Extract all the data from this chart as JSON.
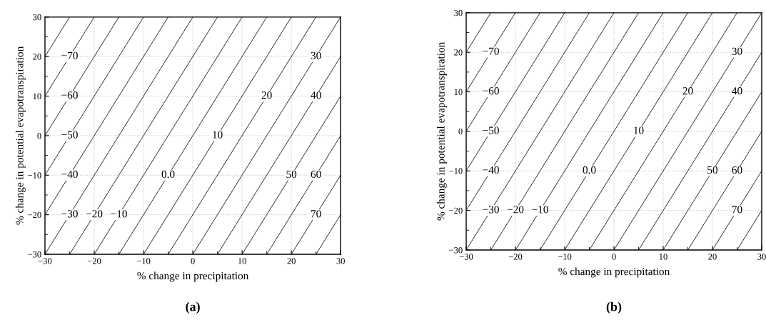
{
  "chart_data": [
    {
      "type": "line",
      "title": "(a)",
      "xlabel": "% change in precipitation",
      "ylabel": "% change in potential evapotranspiration",
      "xlim": [
        -30,
        30
      ],
      "ylim": [
        -30,
        30
      ],
      "xticks": [
        -30,
        {
          "value": -25,
          "label": null
        },
        -20,
        {
          "value": -15,
          "label": null
        },
        -10,
        {
          "value": -5,
          "label": null
        },
        0,
        {
          "value": 5,
          "label": null
        },
        10,
        {
          "value": 15,
          "label": null
        },
        20,
        {
          "value": 25,
          "label": null
        },
        30
      ],
      "yticks": [
        -30,
        {
          "value": -25,
          "label": null
        },
        -20,
        {
          "value": -15,
          "label": null
        },
        -10,
        {
          "value": -5,
          "label": null
        },
        0,
        {
          "value": 5,
          "label": null
        },
        10,
        {
          "value": 15,
          "label": null
        },
        20,
        {
          "value": 25,
          "label": null
        },
        30
      ],
      "grid": true,
      "line_style": "solid",
      "marker": "none",
      "series": [
        {
          "color": "#000000",
          "x": [
            -30,
            -25
          ],
          "values": [
            20,
            30
          ]
        },
        {
          "color": "#000000",
          "x": [
            -30,
            -20
          ],
          "values": [
            10,
            30
          ]
        },
        {
          "color": "#000000",
          "x": [
            -30,
            -15
          ],
          "values": [
            0,
            30
          ]
        },
        {
          "color": "#000000",
          "x": [
            -30,
            -10
          ],
          "values": [
            -10,
            30
          ]
        },
        {
          "color": "#000000",
          "x": [
            -30,
            -5
          ],
          "values": [
            -20,
            30
          ]
        },
        {
          "color": "#000000",
          "x": [
            -30,
            0
          ],
          "values": [
            -30,
            30
          ]
        },
        {
          "color": "#000000",
          "x": [
            -25,
            5
          ],
          "values": [
            -30,
            30
          ]
        },
        {
          "color": "#000000",
          "x": [
            -20,
            10
          ],
          "values": [
            -30,
            30
          ]
        },
        {
          "color": "#000000",
          "x": [
            -15,
            15
          ],
          "values": [
            -30,
            30
          ]
        },
        {
          "color": "#000000",
          "x": [
            -10,
            20
          ],
          "values": [
            -30,
            30
          ]
        },
        {
          "color": "#000000",
          "x": [
            -5,
            25
          ],
          "values": [
            -30,
            30
          ]
        },
        {
          "color": "#000000",
          "x": [
            0,
            30
          ],
          "values": [
            -30,
            30
          ]
        },
        {
          "color": "#000000",
          "x": [
            5,
            30
          ],
          "values": [
            -30,
            20
          ]
        },
        {
          "color": "#000000",
          "x": [
            10,
            30
          ],
          "values": [
            -30,
            10
          ]
        },
        {
          "color": "#000000",
          "x": [
            15,
            30
          ],
          "values": [
            -30,
            0
          ]
        },
        {
          "color": "#000000",
          "x": [
            20,
            30
          ],
          "values": [
            -30,
            -10
          ]
        },
        {
          "color": "#000000",
          "x": [
            25,
            30
          ],
          "values": [
            -30,
            -20
          ]
        }
      ],
      "annotations": [
        {
          "text": "−70",
          "x": -25,
          "y": 20
        },
        {
          "text": "−60",
          "x": -25,
          "y": 10
        },
        {
          "text": "−50",
          "x": -25,
          "y": 0
        },
        {
          "text": "−40",
          "x": -25,
          "y": -10
        },
        {
          "text": "−30",
          "x": -25,
          "y": -20
        },
        {
          "text": "−20",
          "x": -20,
          "y": -20
        },
        {
          "text": "−10",
          "x": -15,
          "y": -20
        },
        {
          "text": "0.0",
          "x": -5,
          "y": -10
        },
        {
          "text": "10",
          "x": 5,
          "y": 0
        },
        {
          "text": "20",
          "x": 15,
          "y": 10
        },
        {
          "text": "30",
          "x": 25,
          "y": 20
        },
        {
          "text": "40",
          "x": 25,
          "y": 10
        },
        {
          "text": "50",
          "x": 20,
          "y": -10
        },
        {
          "text": "60",
          "x": 25,
          "y": -10
        },
        {
          "text": "70",
          "x": 25,
          "y": -20
        }
      ]
    },
    {
      "type": "line",
      "title": "(b)",
      "xlabel": "% change in precipitation",
      "ylabel": "% change in potential evapotranspiration",
      "xlim": [
        -30,
        30
      ],
      "ylim": [
        -30,
        30
      ],
      "xticks": [
        -30,
        {
          "value": -25,
          "label": null
        },
        -20,
        {
          "value": -15,
          "label": null
        },
        -10,
        {
          "value": -5,
          "label": null
        },
        0,
        {
          "value": 5,
          "label": null
        },
        10,
        {
          "value": 15,
          "label": null
        },
        20,
        {
          "value": 25,
          "label": null
        },
        30
      ],
      "yticks": [
        -30,
        {
          "value": -25,
          "label": null
        },
        -20,
        {
          "value": -15,
          "label": null
        },
        -10,
        {
          "value": -5,
          "label": null
        },
        0,
        {
          "value": 5,
          "label": null
        },
        10,
        {
          "value": 15,
          "label": null
        },
        20,
        {
          "value": 25,
          "label": null
        },
        30
      ],
      "grid": true,
      "line_style": "solid",
      "marker": "none",
      "series": [
        {
          "color": "#000000",
          "x": [
            -30,
            -25
          ],
          "values": [
            20,
            30
          ]
        },
        {
          "color": "#000000",
          "x": [
            -30,
            -20
          ],
          "values": [
            10,
            30
          ]
        },
        {
          "color": "#000000",
          "x": [
            -30,
            -15
          ],
          "values": [
            0,
            30
          ]
        },
        {
          "color": "#000000",
          "x": [
            -30,
            -10
          ],
          "values": [
            -10,
            30
          ]
        },
        {
          "color": "#000000",
          "x": [
            -30,
            -5
          ],
          "values": [
            -20,
            30
          ]
        },
        {
          "color": "#000000",
          "x": [
            -30,
            0
          ],
          "values": [
            -30,
            30
          ]
        },
        {
          "color": "#000000",
          "x": [
            -25,
            5
          ],
          "values": [
            -30,
            30
          ]
        },
        {
          "color": "#000000",
          "x": [
            -20,
            10
          ],
          "values": [
            -30,
            30
          ]
        },
        {
          "color": "#000000",
          "x": [
            -15,
            15
          ],
          "values": [
            -30,
            30
          ]
        },
        {
          "color": "#000000",
          "x": [
            -10,
            20
          ],
          "values": [
            -30,
            30
          ]
        },
        {
          "color": "#000000",
          "x": [
            -5,
            25
          ],
          "values": [
            -30,
            30
          ]
        },
        {
          "color": "#000000",
          "x": [
            0,
            30
          ],
          "values": [
            -30,
            30
          ]
        },
        {
          "color": "#000000",
          "x": [
            5,
            30
          ],
          "values": [
            -30,
            20
          ]
        },
        {
          "color": "#000000",
          "x": [
            10,
            30
          ],
          "values": [
            -30,
            10
          ]
        },
        {
          "color": "#000000",
          "x": [
            15,
            30
          ],
          "values": [
            -30,
            0
          ]
        },
        {
          "color": "#000000",
          "x": [
            20,
            30
          ],
          "values": [
            -30,
            -10
          ]
        },
        {
          "color": "#000000",
          "x": [
            25,
            30
          ],
          "values": [
            -30,
            -20
          ]
        }
      ],
      "annotations": [
        {
          "text": "−70",
          "x": -25,
          "y": 20
        },
        {
          "text": "−60",
          "x": -25,
          "y": 10
        },
        {
          "text": "−50",
          "x": -25,
          "y": 0
        },
        {
          "text": "−40",
          "x": -25,
          "y": -10
        },
        {
          "text": "−30",
          "x": -25,
          "y": -20
        },
        {
          "text": "−20",
          "x": -20,
          "y": -20
        },
        {
          "text": "−10",
          "x": -15,
          "y": -20
        },
        {
          "text": "0.0",
          "x": -5,
          "y": -10
        },
        {
          "text": "10",
          "x": 5,
          "y": 0
        },
        {
          "text": "20",
          "x": 15,
          "y": 10
        },
        {
          "text": "30",
          "x": 25,
          "y": 20
        },
        {
          "text": "40",
          "x": 25,
          "y": 10
        },
        {
          "text": "50",
          "x": 20,
          "y": -10
        },
        {
          "text": "60",
          "x": 25,
          "y": -10
        },
        {
          "text": "70",
          "x": 25,
          "y": -20
        }
      ]
    }
  ]
}
